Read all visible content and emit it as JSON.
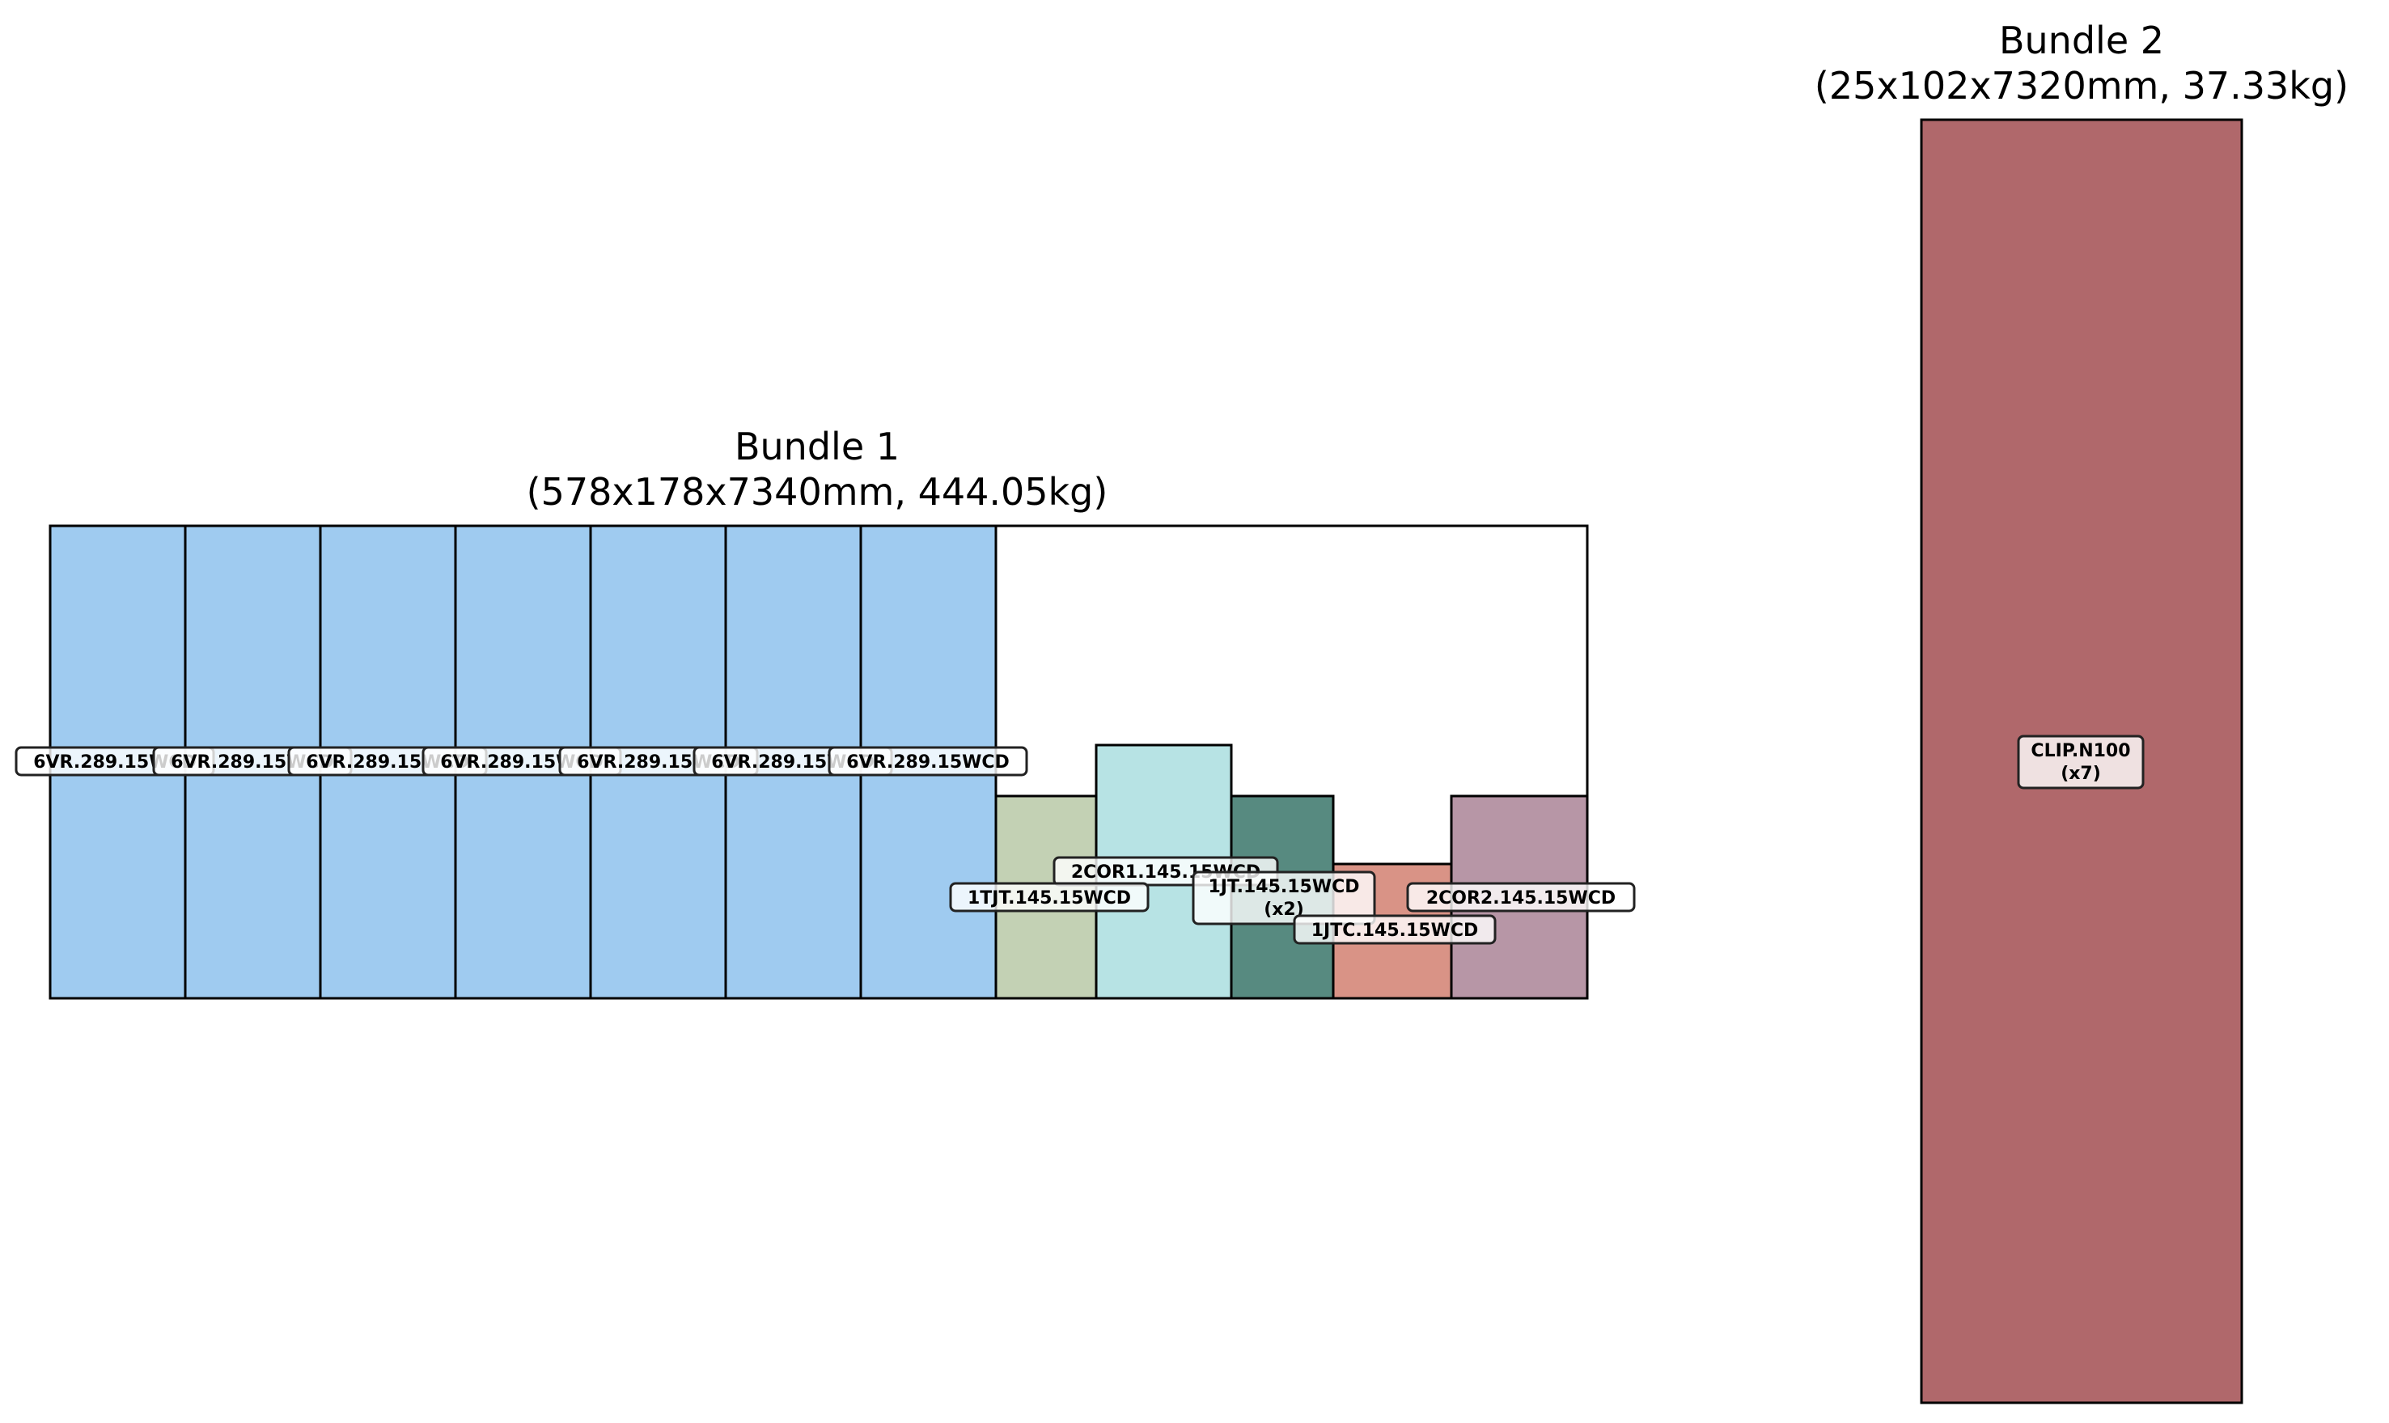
{
  "bundles": [
    {
      "title_line1": "Bundle 1",
      "title_line2": "(578x178x7340mm, 444.05kg)",
      "width_mm": 578,
      "height_mm": 178,
      "pieces": [
        {
          "label": "6VR.289.15WCD",
          "width_mm": 51,
          "height_mm": 178,
          "color": "#9fcbf0"
        },
        {
          "label": "6VR.289.15WCD",
          "width_mm": 51,
          "height_mm": 178,
          "color": "#9fcbf0"
        },
        {
          "label": "6VR.289.15WCD",
          "width_mm": 51,
          "height_mm": 178,
          "color": "#9fcbf0"
        },
        {
          "label": "6VR.289.15WCD",
          "width_mm": 51,
          "height_mm": 178,
          "color": "#9fcbf0"
        },
        {
          "label": "6VR.289.15WCD",
          "width_mm": 51,
          "height_mm": 178,
          "color": "#9fcbf0"
        },
        {
          "label": "6VR.289.15WCD",
          "width_mm": 51,
          "height_mm": 178,
          "color": "#9fcbf0"
        },
        {
          "label": "6VR.289.15WCD",
          "width_mm": 51,
          "height_mm": 178,
          "color": "#9fcbf0"
        },
        {
          "label": "1TJT.145.15WCD",
          "width_mm": 38,
          "height_mm": 76,
          "color": "#c3d1b4"
        },
        {
          "label": "2COR1.145.15WCD",
          "width_mm": 51,
          "height_mm": 95,
          "color": "#b7e3e4"
        },
        {
          "label": "1JT.145.15WCD",
          "label_line2": "(x2)",
          "width_mm": 38,
          "height_mm": 76,
          "color": "#578a80"
        },
        {
          "label": "1JTC.145.15WCD",
          "width_mm": 44,
          "height_mm": 51,
          "color": "#d99386"
        },
        {
          "label": "2COR2.145.15WCD",
          "width_mm": 51,
          "height_mm": 76,
          "color": "#b796a6"
        }
      ]
    },
    {
      "title_line1": "Bundle 2",
      "title_line2": "(25x102x7320mm, 37.33kg)",
      "width_mm": 25,
      "height_mm": 102,
      "pieces": [
        {
          "label": "CLIP.N100",
          "label_line2": "(x7)",
          "width_mm": 25,
          "height_mm": 102,
          "color": "#b0686b"
        }
      ]
    }
  ]
}
